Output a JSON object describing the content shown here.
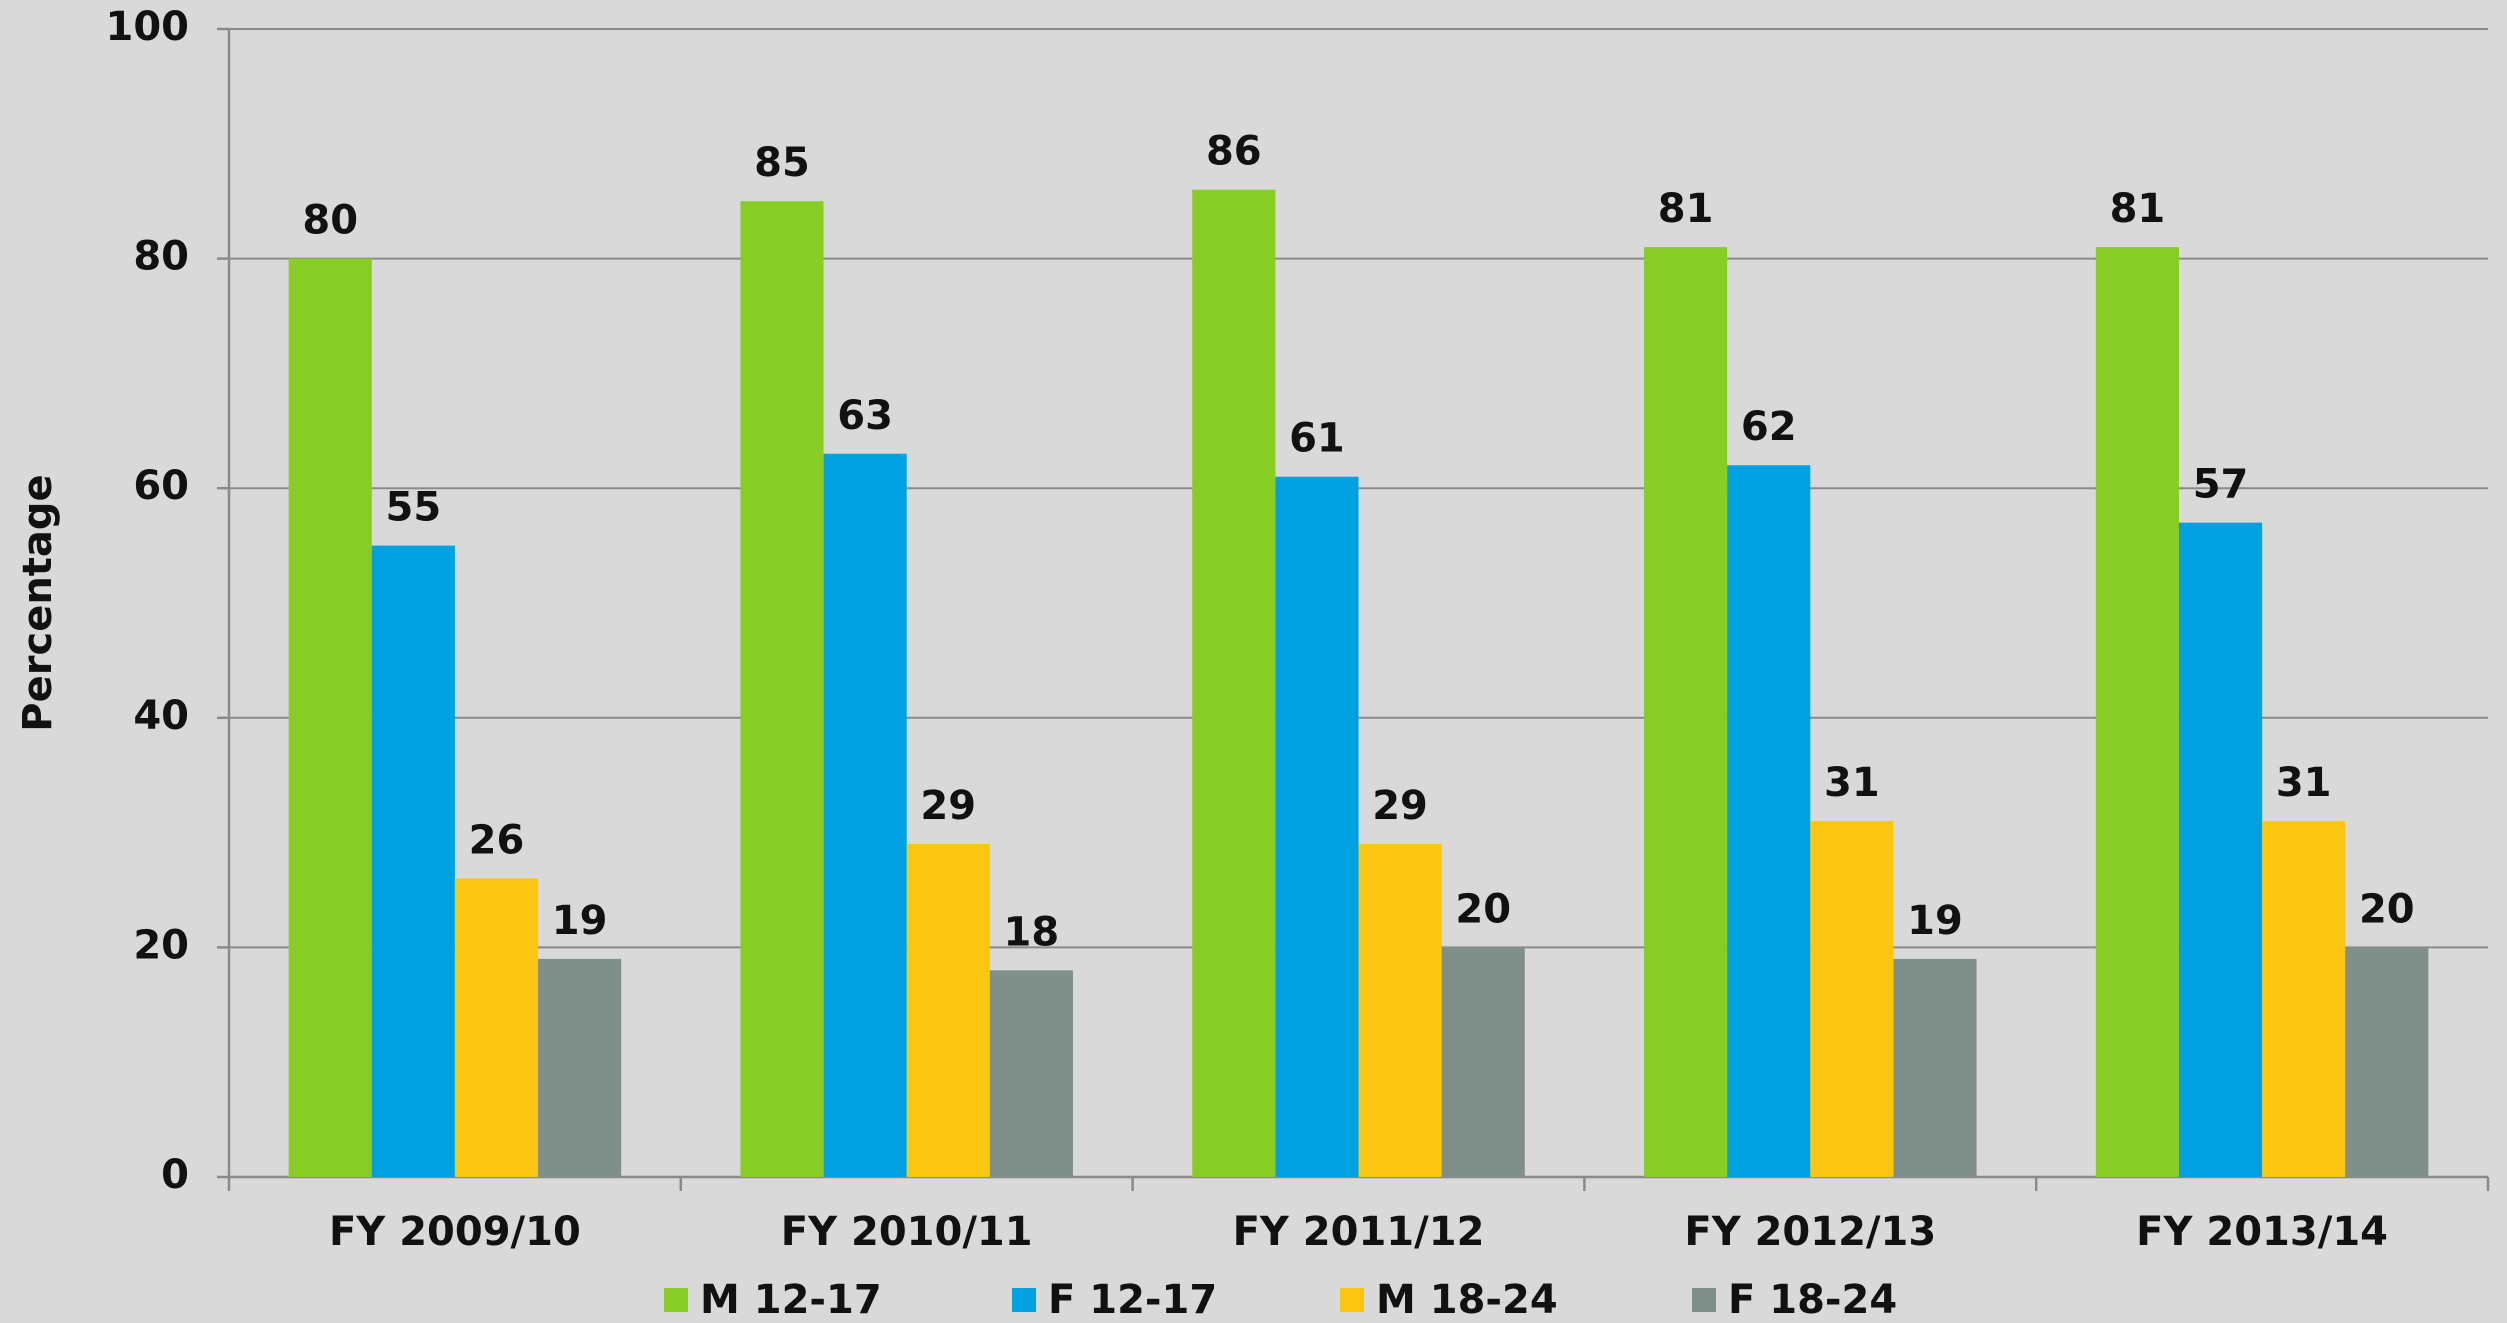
{
  "chart_data": {
    "type": "bar",
    "y_label": "Percentage",
    "categories": [
      "FY 2009/10",
      "FY 2010/11",
      "FY 2011/12",
      "FY 2012/13",
      "FY 2013/14"
    ],
    "series": [
      {
        "name": "M 12-17",
        "color": "#88cc26",
        "values": [
          80,
          85,
          86,
          81,
          81
        ]
      },
      {
        "name": "F 12-17",
        "color": "#00a0e1",
        "values": [
          55,
          63,
          61,
          62,
          57
        ]
      },
      {
        "name": "M 18-24",
        "color": "#fbc612",
        "values": [
          26,
          29,
          29,
          31,
          31
        ]
      },
      {
        "name": "F 18-24",
        "color": "#7f8f8a",
        "values": [
          19,
          18,
          20,
          19,
          20
        ]
      }
    ],
    "ylim": [
      0,
      100
    ],
    "yticks": [
      0,
      20,
      40,
      60,
      80,
      100
    ],
    "grid": true,
    "legend": "bottom"
  }
}
